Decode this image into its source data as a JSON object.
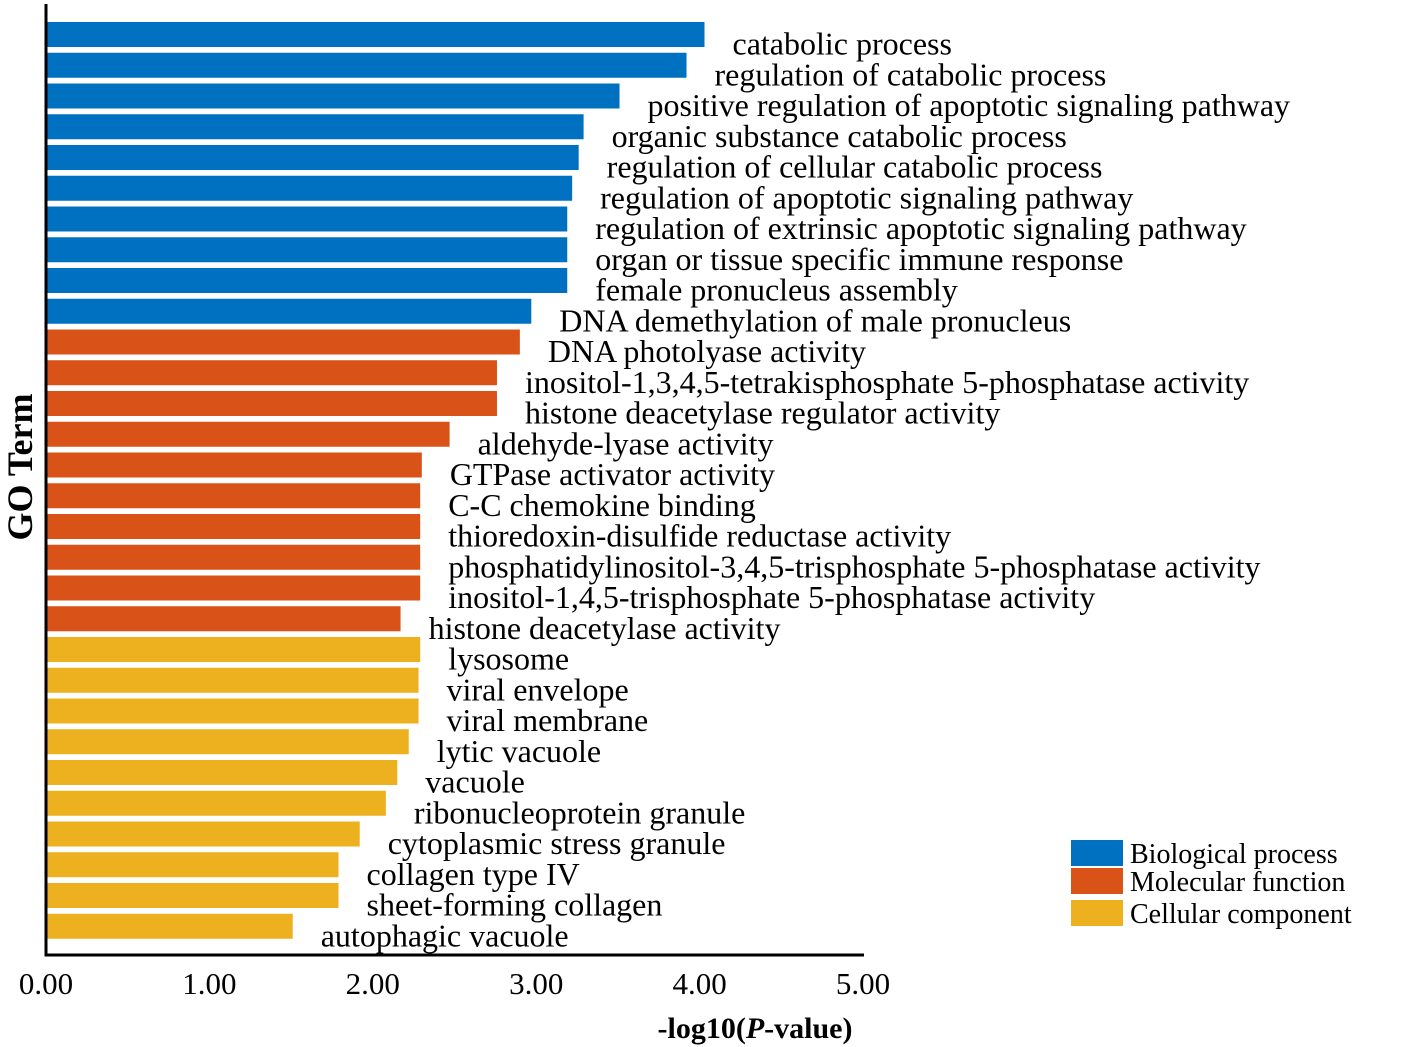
{
  "chart_data": {
    "type": "bar",
    "orientation": "horizontal",
    "xlabel_prefix": "-log10(",
    "xlabel_italic": "P",
    "xlabel_suffix": "-value)",
    "ylabel": "GO Term",
    "xlim": [
      0,
      5
    ],
    "xticks": [
      "0.00",
      "1.00",
      "2.00",
      "3.00",
      "4.00",
      "5.00"
    ],
    "legend_position": "bottom-right",
    "groups": [
      {
        "name": "Biological process",
        "color": "#0070C0"
      },
      {
        "name": "Molecular function",
        "color": "#D95319"
      },
      {
        "name": "Cellular component",
        "color": "#EDB120"
      }
    ],
    "bars": [
      {
        "term": "catabolic process",
        "value": 4.03,
        "group": 0
      },
      {
        "term": "regulation of catabolic process",
        "value": 3.92,
        "group": 0
      },
      {
        "term": "positive regulation of apoptotic signaling pathway",
        "value": 3.51,
        "group": 0
      },
      {
        "term": "organic substance catabolic process",
        "value": 3.29,
        "group": 0
      },
      {
        "term": "regulation of cellular catabolic process",
        "value": 3.26,
        "group": 0
      },
      {
        "term": "regulation of apoptotic signaling pathway",
        "value": 3.22,
        "group": 0
      },
      {
        "term": "regulation of extrinsic apoptotic signaling pathway",
        "value": 3.19,
        "group": 0
      },
      {
        "term": "organ or tissue specific immune response",
        "value": 3.19,
        "group": 0
      },
      {
        "term": "female pronucleus assembly",
        "value": 3.19,
        "group": 0
      },
      {
        "term": "DNA demethylation of male pronucleus",
        "value": 2.97,
        "group": 0
      },
      {
        "term": "DNA photolyase activity",
        "value": 2.9,
        "group": 1
      },
      {
        "term": "inositol-1,3,4,5-tetrakisphosphate 5-phosphatase activity",
        "value": 2.76,
        "group": 1
      },
      {
        "term": "histone deacetylase regulator activity",
        "value": 2.76,
        "group": 1
      },
      {
        "term": "aldehyde-lyase activity",
        "value": 2.47,
        "group": 1
      },
      {
        "term": "GTPase activator activity",
        "value": 2.3,
        "group": 1
      },
      {
        "term": "C-C chemokine binding",
        "value": 2.29,
        "group": 1
      },
      {
        "term": "thioredoxin-disulfide reductase activity",
        "value": 2.29,
        "group": 1
      },
      {
        "term": "phosphatidylinositol-3,4,5-trisphosphate 5-phosphatase activity",
        "value": 2.29,
        "group": 1
      },
      {
        "term": "inositol-1,4,5-trisphosphate 5-phosphatase activity",
        "value": 2.29,
        "group": 1
      },
      {
        "term": "histone deacetylase activity",
        "value": 2.17,
        "group": 1
      },
      {
        "term": "lysosome",
        "value": 2.29,
        "group": 2
      },
      {
        "term": "viral envelope",
        "value": 2.28,
        "group": 2
      },
      {
        "term": "viral membrane",
        "value": 2.28,
        "group": 2
      },
      {
        "term": "lytic vacuole",
        "value": 2.22,
        "group": 2
      },
      {
        "term": "vacuole",
        "value": 2.15,
        "group": 2
      },
      {
        "term": "ribonucleoprotein granule",
        "value": 2.08,
        "group": 2
      },
      {
        "term": "cytoplasmic stress granule",
        "value": 1.92,
        "group": 2
      },
      {
        "term": "collagen type IV",
        "value": 1.79,
        "group": 2
      },
      {
        "term": "sheet-forming collagen",
        "value": 1.79,
        "group": 2
      },
      {
        "term": "autophagic vacuole",
        "value": 1.51,
        "group": 2
      }
    ]
  }
}
